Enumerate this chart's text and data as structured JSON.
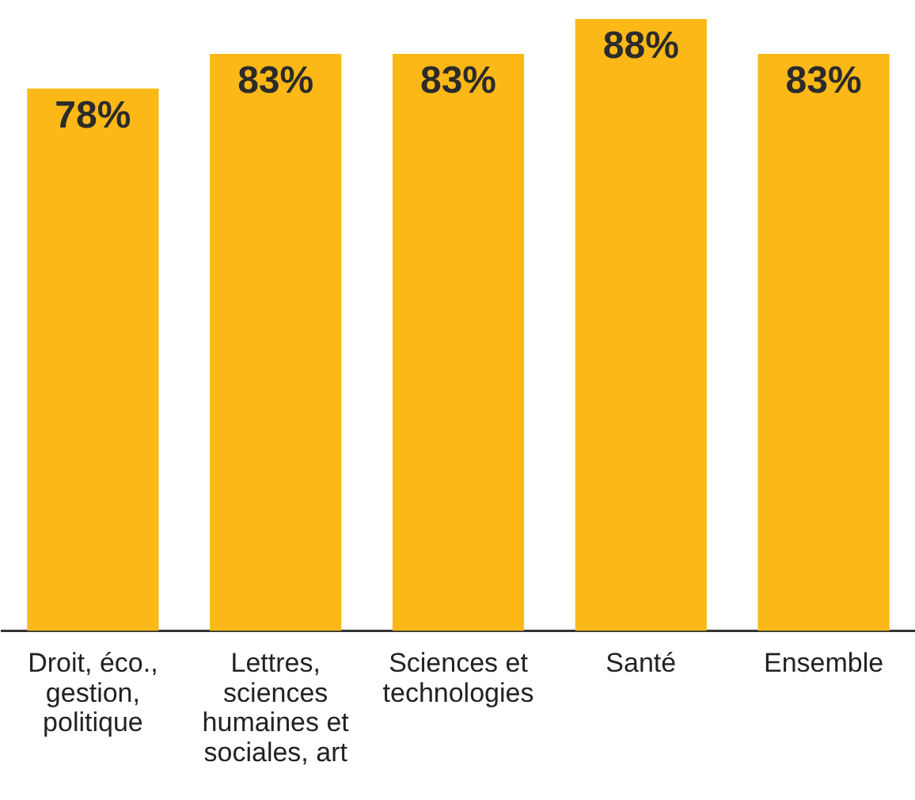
{
  "chart_data": {
    "type": "bar",
    "categories": [
      "Droit, éco., gestion, politique",
      "Lettres, sciences humaines et sociales, art",
      "Sciences et technologies",
      "Santé",
      "Ensemble"
    ],
    "values": [
      78,
      83,
      83,
      88,
      83
    ],
    "value_labels": [
      "78%",
      "83%",
      "83%",
      "88%",
      "83%"
    ],
    "color": "#fbb817",
    "ylim": [
      0,
      88
    ],
    "tick_labels": "x",
    "grid": false,
    "legend": false
  }
}
